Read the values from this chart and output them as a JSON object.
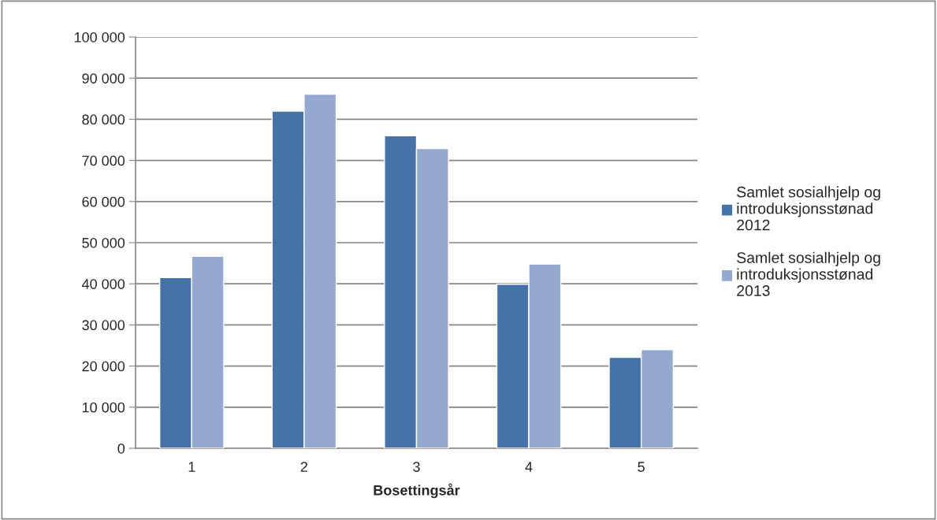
{
  "chart_data": {
    "type": "bar",
    "xlabel": "Bosettingsår",
    "categories": [
      "1",
      "2",
      "3",
      "4",
      "5"
    ],
    "series": [
      {
        "name": "Samlet sosialhjelp og\nintroduksjonsstønad\n2012",
        "color": "#4673a7",
        "values": [
          41500,
          82000,
          76000,
          39900,
          22100
        ]
      },
      {
        "name": "Samlet sosialhjelp og\nintroduksjonsstønad\n2013",
        "color": "#95a9d0",
        "values": [
          46700,
          86100,
          72900,
          44800,
          24000
        ]
      }
    ],
    "ylim": [
      0,
      100000
    ],
    "yticks": [
      0,
      {
        "value": 10000,
        "label": "10 000"
      },
      {
        "value": 20000,
        "label": "20 000"
      },
      {
        "value": 30000,
        "label": "30 000"
      },
      {
        "value": 40000,
        "label": "40 000"
      },
      {
        "value": 50000,
        "label": "50 000"
      },
      {
        "value": 60000,
        "label": "60 000"
      },
      {
        "value": 70000,
        "label": "70 000"
      },
      {
        "value": 80000,
        "label": "80 000"
      },
      {
        "value": 90000,
        "label": "90 000"
      },
      {
        "value": 100000,
        "label": "100 000"
      }
    ],
    "grid": "y",
    "legend": "right"
  }
}
